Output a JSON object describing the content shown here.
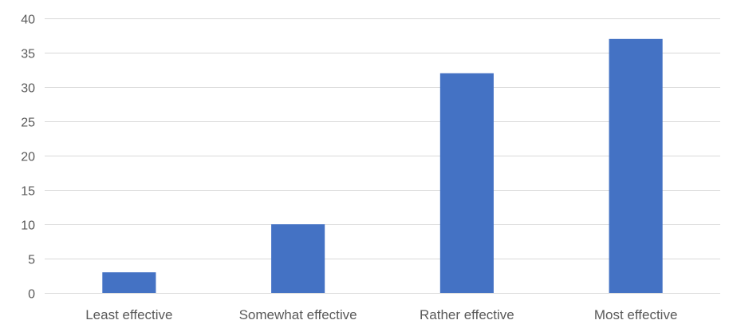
{
  "chart_data": {
    "type": "bar",
    "title": "",
    "xlabel": "",
    "ylabel": "",
    "categories": [
      "Least effective",
      "Somewhat effective",
      "Rather effective",
      "Most effective"
    ],
    "values": [
      3,
      10,
      32,
      37
    ],
    "ylim": [
      0,
      40
    ],
    "yticks": [
      0,
      5,
      10,
      15,
      20,
      25,
      30,
      35,
      40
    ],
    "grid": true,
    "legend": "none",
    "colors": {
      "bar": "#4472C4",
      "grid": "#D9D9D9",
      "text": "#595959"
    }
  }
}
